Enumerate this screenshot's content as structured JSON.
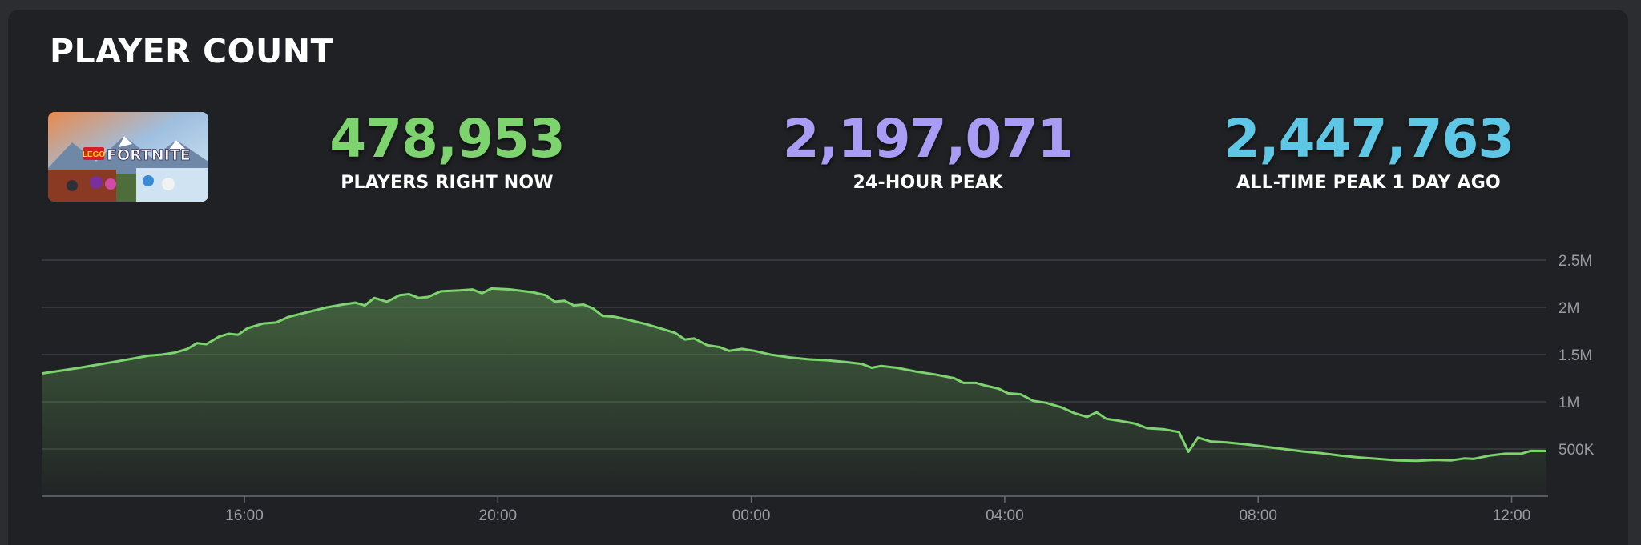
{
  "header": {
    "title": "PLAYER COUNT"
  },
  "game": {
    "thumbnail_brand": "LEGO",
    "thumbnail_title": "FORTNITE"
  },
  "stats": [
    {
      "value": "478,953",
      "label": "PLAYERS RIGHT NOW",
      "color": "#7dd46e"
    },
    {
      "value": "2,197,071",
      "label": "24-HOUR PEAK",
      "color": "#a99cf5"
    },
    {
      "value": "2,447,763",
      "label": "ALL-TIME PEAK 1 DAY AGO",
      "color": "#5fc7e6"
    }
  ],
  "chart_data": {
    "type": "area",
    "title": "",
    "xlabel": "",
    "ylabel": "",
    "series_color": "#7dd46e",
    "ylim": [
      0,
      2500000
    ],
    "xlim": [
      12.8,
      36.55
    ],
    "grid": true,
    "y_ticks": [
      {
        "v": 2500000,
        "label": "2.5M"
      },
      {
        "v": 2000000,
        "label": "2M"
      },
      {
        "v": 1500000,
        "label": "1.5M"
      },
      {
        "v": 1000000,
        "label": "1M"
      },
      {
        "v": 500000,
        "label": "500K"
      }
    ],
    "x_ticks": [
      {
        "t": 16,
        "label": "16:00"
      },
      {
        "t": 20,
        "label": "20:00"
      },
      {
        "t": 24,
        "label": "00:00"
      },
      {
        "t": 28,
        "label": "04:00"
      },
      {
        "t": 32,
        "label": "08:00"
      },
      {
        "t": 36,
        "label": "12:00"
      }
    ],
    "points": [
      [
        12.8,
        1300000
      ],
      [
        13.1,
        1330000
      ],
      [
        13.4,
        1360000
      ],
      [
        13.7,
        1395000
      ],
      [
        14.0,
        1430000
      ],
      [
        14.3,
        1465000
      ],
      [
        14.5,
        1490000
      ],
      [
        14.7,
        1500000
      ],
      [
        14.9,
        1520000
      ],
      [
        15.1,
        1560000
      ],
      [
        15.25,
        1620000
      ],
      [
        15.4,
        1610000
      ],
      [
        15.6,
        1690000
      ],
      [
        15.75,
        1720000
      ],
      [
        15.9,
        1710000
      ],
      [
        16.05,
        1780000
      ],
      [
        16.3,
        1830000
      ],
      [
        16.5,
        1840000
      ],
      [
        16.7,
        1900000
      ],
      [
        17.0,
        1950000
      ],
      [
        17.3,
        2000000
      ],
      [
        17.55,
        2030000
      ],
      [
        17.75,
        2050000
      ],
      [
        17.9,
        2020000
      ],
      [
        18.05,
        2100000
      ],
      [
        18.25,
        2060000
      ],
      [
        18.45,
        2130000
      ],
      [
        18.6,
        2140000
      ],
      [
        18.75,
        2100000
      ],
      [
        18.9,
        2110000
      ],
      [
        19.1,
        2170000
      ],
      [
        19.4,
        2180000
      ],
      [
        19.6,
        2190000
      ],
      [
        19.75,
        2150000
      ],
      [
        19.9,
        2200000
      ],
      [
        20.2,
        2190000
      ],
      [
        20.55,
        2160000
      ],
      [
        20.75,
        2130000
      ],
      [
        20.9,
        2060000
      ],
      [
        21.05,
        2070000
      ],
      [
        21.2,
        2020000
      ],
      [
        21.35,
        2030000
      ],
      [
        21.5,
        1990000
      ],
      [
        21.65,
        1910000
      ],
      [
        21.85,
        1900000
      ],
      [
        22.05,
        1870000
      ],
      [
        22.35,
        1820000
      ],
      [
        22.6,
        1770000
      ],
      [
        22.8,
        1730000
      ],
      [
        22.95,
        1660000
      ],
      [
        23.1,
        1670000
      ],
      [
        23.3,
        1600000
      ],
      [
        23.5,
        1580000
      ],
      [
        23.65,
        1540000
      ],
      [
        23.85,
        1560000
      ],
      [
        24.05,
        1540000
      ],
      [
        24.3,
        1500000
      ],
      [
        24.6,
        1470000
      ],
      [
        24.9,
        1450000
      ],
      [
        25.2,
        1440000
      ],
      [
        25.5,
        1420000
      ],
      [
        25.75,
        1400000
      ],
      [
        25.9,
        1360000
      ],
      [
        26.05,
        1380000
      ],
      [
        26.3,
        1360000
      ],
      [
        26.6,
        1320000
      ],
      [
        26.9,
        1290000
      ],
      [
        27.2,
        1250000
      ],
      [
        27.35,
        1200000
      ],
      [
        27.55,
        1200000
      ],
      [
        27.7,
        1170000
      ],
      [
        27.9,
        1140000
      ],
      [
        28.05,
        1090000
      ],
      [
        28.25,
        1080000
      ],
      [
        28.45,
        1010000
      ],
      [
        28.65,
        990000
      ],
      [
        28.9,
        940000
      ],
      [
        29.1,
        880000
      ],
      [
        29.3,
        840000
      ],
      [
        29.45,
        890000
      ],
      [
        29.6,
        820000
      ],
      [
        29.8,
        800000
      ],
      [
        30.05,
        770000
      ],
      [
        30.25,
        720000
      ],
      [
        30.5,
        710000
      ],
      [
        30.75,
        680000
      ],
      [
        30.9,
        470000
      ],
      [
        31.05,
        620000
      ],
      [
        31.25,
        580000
      ],
      [
        31.5,
        570000
      ],
      [
        31.8,
        550000
      ],
      [
        32.1,
        525000
      ],
      [
        32.4,
        500000
      ],
      [
        32.7,
        475000
      ],
      [
        33.0,
        455000
      ],
      [
        33.3,
        430000
      ],
      [
        33.6,
        410000
      ],
      [
        33.9,
        395000
      ],
      [
        34.2,
        380000
      ],
      [
        34.5,
        375000
      ],
      [
        34.8,
        385000
      ],
      [
        35.05,
        380000
      ],
      [
        35.25,
        400000
      ],
      [
        35.4,
        395000
      ],
      [
        35.65,
        430000
      ],
      [
        35.9,
        450000
      ],
      [
        36.15,
        450000
      ],
      [
        36.3,
        480000
      ],
      [
        36.55,
        478953
      ]
    ]
  }
}
